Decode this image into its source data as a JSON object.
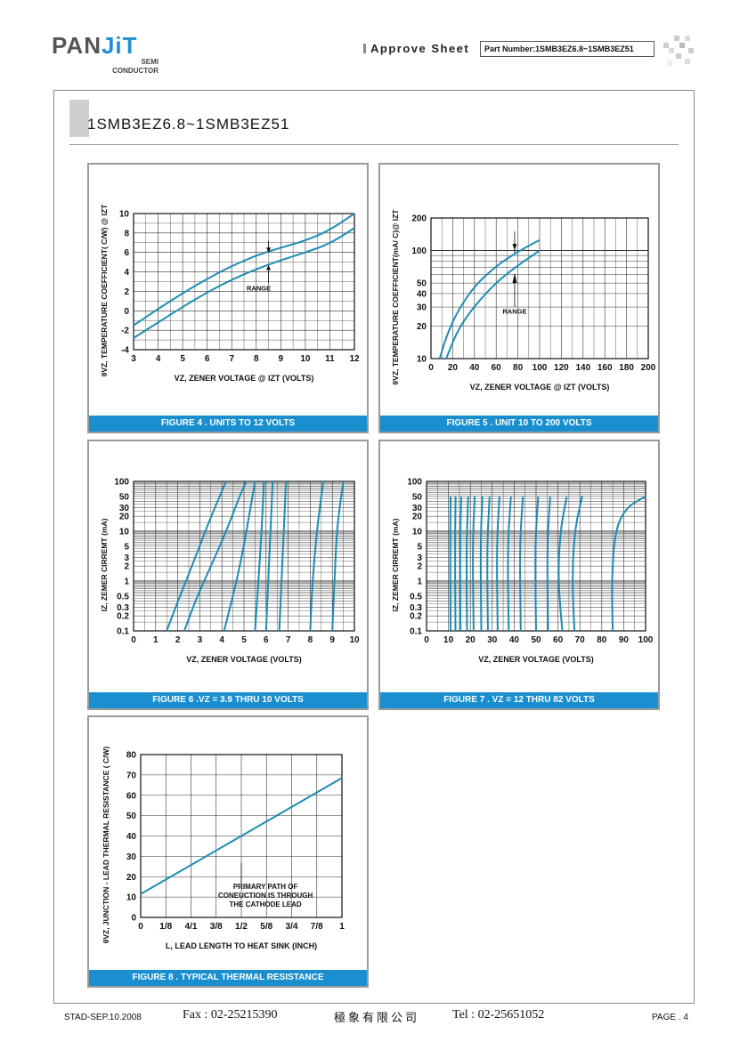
{
  "header": {
    "logo_pan": "PAN",
    "logo_jit": "JiT",
    "logo_semi": "SEMI",
    "logo_conductor": "CONDUCTOR",
    "title": "Approve Sheet",
    "part_number": "Part Number:1SMB3EZ6.8~1SMB3EZ51"
  },
  "page_title": "1SMB3EZ6.8~1SMB3EZ51",
  "footer": {
    "doc_code": "STAD-SEP.10.2008",
    "fax": "Fax : 02-25215390",
    "company": "極象有限公司",
    "tel": "Tel : 02-25651052",
    "page": "PAGE . 4"
  },
  "chart_data": [
    {
      "id": "fig4",
      "type": "line",
      "caption": "FIGURE 4 . UNITS TO 12 VOLTS",
      "ylabel": "θVZ, TEMPERATURE COEFFICIENT( C/W) @ IZT",
      "xlabel": "VZ, ZENER VOLTAGE @ IZT (VOLTS)",
      "xlim": [
        3,
        12
      ],
      "ylim": [
        -4,
        10
      ],
      "xticks": [
        "3",
        "4",
        "5",
        "6",
        "7",
        "8",
        "9",
        "10",
        "11",
        "12"
      ],
      "yticks": [
        "-4",
        "-2",
        "0",
        "2",
        "4",
        "6",
        "8",
        "10"
      ],
      "annotation": "RANGE",
      "series": [
        {
          "x": [
            3,
            4,
            5,
            6,
            7,
            8,
            9,
            10,
            11,
            12
          ],
          "y": [
            -1.5,
            0.2,
            1.8,
            3.3,
            4.6,
            5.7,
            6.5,
            7.2,
            8.3,
            10.0
          ]
        },
        {
          "x": [
            3,
            4,
            5,
            6,
            7,
            8,
            9,
            10,
            11,
            12
          ],
          "y": [
            -2.8,
            -1.2,
            0.4,
            1.9,
            3.2,
            4.3,
            5.2,
            6.0,
            6.9,
            8.5
          ]
        }
      ]
    },
    {
      "id": "fig5",
      "type": "line",
      "caption": "FIGURE 5 . UNIT 10 TO 200 VOLTS",
      "ylabel": "θVZ, TEMPERATURE COEFFICIENT(mA/ C)@ IZT",
      "xlabel": "VZ, ZENER VOLTAGE @ IZT (VOLTS)",
      "xlim": [
        0,
        200
      ],
      "ylim": [
        10,
        200
      ],
      "ylog": true,
      "xticks": [
        "0",
        "20",
        "40",
        "60",
        "80",
        "100",
        "120",
        "140",
        "160",
        "180",
        "200"
      ],
      "yticks": [
        "10",
        "20",
        "30",
        "40",
        "50",
        "100",
        "200"
      ],
      "annotation": "RANGE",
      "series": [
        {
          "x": [
            8,
            15,
            25,
            40,
            60,
            80,
            100
          ],
          "y": [
            10,
            17,
            28,
            47,
            72,
            98,
            125
          ]
        },
        {
          "x": [
            14,
            22,
            32,
            48,
            65,
            82,
            100
          ],
          "y": [
            10,
            16,
            24,
            38,
            56,
            75,
            100
          ]
        }
      ]
    },
    {
      "id": "fig6",
      "type": "line",
      "caption": "FIGURE 6 .VZ = 3.9 THRU 10 VOLTS",
      "ylabel": "IZ, ZEMER CIRREMT (mA)",
      "xlabel": "VZ, ZENER VOLTAGE (VOLTS)",
      "xlim": [
        0,
        10
      ],
      "ylim": [
        0.1,
        100
      ],
      "ylog": true,
      "xticks": [
        "0",
        "1",
        "2",
        "3",
        "4",
        "5",
        "6",
        "7",
        "8",
        "9",
        "10"
      ],
      "yticks": [
        "0.1",
        "0.2",
        "0.3",
        "0.5",
        "1",
        "2",
        "3",
        "5",
        "10",
        "20",
        "30",
        "50",
        "100"
      ],
      "series": [
        {
          "x": [
            1.5,
            2.1,
            2.8,
            3.4,
            3.9,
            4.2
          ],
          "y": [
            0.1,
            0.5,
            3,
            15,
            50,
            100
          ]
        },
        {
          "x": [
            2.3,
            2.8,
            3.5,
            4.2,
            4.8,
            5.1
          ],
          "y": [
            0.1,
            0.4,
            2,
            10,
            50,
            100
          ]
        },
        {
          "x": [
            4.1,
            4.5,
            4.9,
            5.3,
            5.5
          ],
          "y": [
            0.1,
            0.5,
            3,
            30,
            100
          ]
        },
        {
          "x": [
            5.5,
            5.65,
            5.8,
            5.9
          ],
          "y": [
            0.1,
            1,
            10,
            100
          ]
        },
        {
          "x": [
            6.0,
            6.1,
            6.2,
            6.3
          ],
          "y": [
            0.1,
            1,
            10,
            100
          ]
        },
        {
          "x": [
            6.6,
            6.7,
            6.8,
            6.9
          ],
          "y": [
            0.1,
            1,
            10,
            100
          ]
        },
        {
          "x": [
            8.0,
            8.1,
            8.3,
            8.5,
            8.6
          ],
          "y": [
            0.1,
            1,
            10,
            50,
            100
          ]
        },
        {
          "x": [
            9.0,
            9.1,
            9.2,
            9.4,
            9.5
          ],
          "y": [
            0.1,
            1,
            10,
            50,
            100
          ]
        }
      ]
    },
    {
      "id": "fig7",
      "type": "line",
      "caption": "FIGURE 7 . VZ = 12 THRU 82 VOLTS",
      "ylabel": "IZ, ZEMER CIRREMT (mA)",
      "xlabel": "VZ, ZENER VOLTAGE (VOLTS)",
      "xlim": [
        0,
        100
      ],
      "ylim": [
        0.1,
        100
      ],
      "ylog": true,
      "xticks": [
        "0",
        "10",
        "20",
        "30",
        "40",
        "50",
        "60",
        "70",
        "80",
        "90",
        "100"
      ],
      "yticks": [
        "0.1",
        "0.2",
        "0.3",
        "0.5",
        "1",
        "2",
        "3",
        "5",
        "10",
        "20",
        "30",
        "50",
        "100"
      ],
      "series": [
        {
          "x": [
            11.0,
            10.8,
            11.0
          ],
          "y": [
            0.1,
            5,
            50
          ]
        },
        {
          "x": [
            13.2,
            13.0,
            13.3
          ],
          "y": [
            0.1,
            5,
            50
          ]
        },
        {
          "x": [
            15.5,
            15.3,
            15.8
          ],
          "y": [
            0.1,
            5,
            50
          ]
        },
        {
          "x": [
            18.5,
            18.2,
            19.0
          ],
          "y": [
            0.1,
            5,
            50
          ]
        },
        {
          "x": [
            21.5,
            21.0,
            22.0
          ],
          "y": [
            0.1,
            5,
            50
          ]
        },
        {
          "x": [
            25.0,
            24.6,
            25.5
          ],
          "y": [
            0.1,
            5,
            50
          ]
        },
        {
          "x": [
            28.0,
            27.6,
            28.8
          ],
          "y": [
            0.1,
            5,
            50
          ]
        },
        {
          "x": [
            32.5,
            32.0,
            33.3
          ],
          "y": [
            0.1,
            5,
            50
          ]
        },
        {
          "x": [
            37.5,
            37.0,
            38.5
          ],
          "y": [
            0.1,
            5,
            50
          ]
        },
        {
          "x": [
            43.0,
            42.5,
            44.0
          ],
          "y": [
            0.1,
            5,
            50
          ]
        },
        {
          "x": [
            50.0,
            49.5,
            51.0
          ],
          "y": [
            0.1,
            5,
            50
          ]
        },
        {
          "x": [
            55.5,
            55.0,
            56.5
          ],
          "y": [
            0.1,
            5,
            50
          ]
        },
        {
          "x": [
            62.0,
            60.0,
            61.0,
            64.0
          ],
          "y": [
            0.1,
            1,
            10,
            50
          ]
        },
        {
          "x": [
            67.5,
            66.5,
            67.5,
            71.0
          ],
          "y": [
            0.1,
            1,
            10,
            50
          ]
        },
        {
          "x": [
            85.0,
            84.5,
            86.0,
            91.0,
            100.0
          ],
          "y": [
            0.1,
            1,
            10,
            30,
            50
          ]
        }
      ]
    },
    {
      "id": "fig8",
      "type": "line",
      "caption": "FIGURE 8 . TYPICAL THERMAL RESISTANCE",
      "ylabel": "θVZ, JUNCTION - LEAD THERMAL RESISTANCE ( C/W)",
      "xlabel": "L, LEAD LENGTH TO HEAT SINK (INCH)",
      "xlim": [
        0,
        1
      ],
      "ylim": [
        0,
        80
      ],
      "xticks": [
        "0",
        "1/8",
        "4/1",
        "3/8",
        "1/2",
        "5/8",
        "3/4",
        "7/8",
        "1"
      ],
      "yticks": [
        "0",
        "10",
        "20",
        "30",
        "40",
        "50",
        "60",
        "70",
        "80"
      ],
      "annotation": "PRIMARY PATH OF\nCONEUCTION IS THROUGH\nTHE CATHODE LEAD",
      "series": [
        {
          "x": [
            0,
            1
          ],
          "y": [
            11.5,
            68.5
          ]
        }
      ]
    }
  ]
}
